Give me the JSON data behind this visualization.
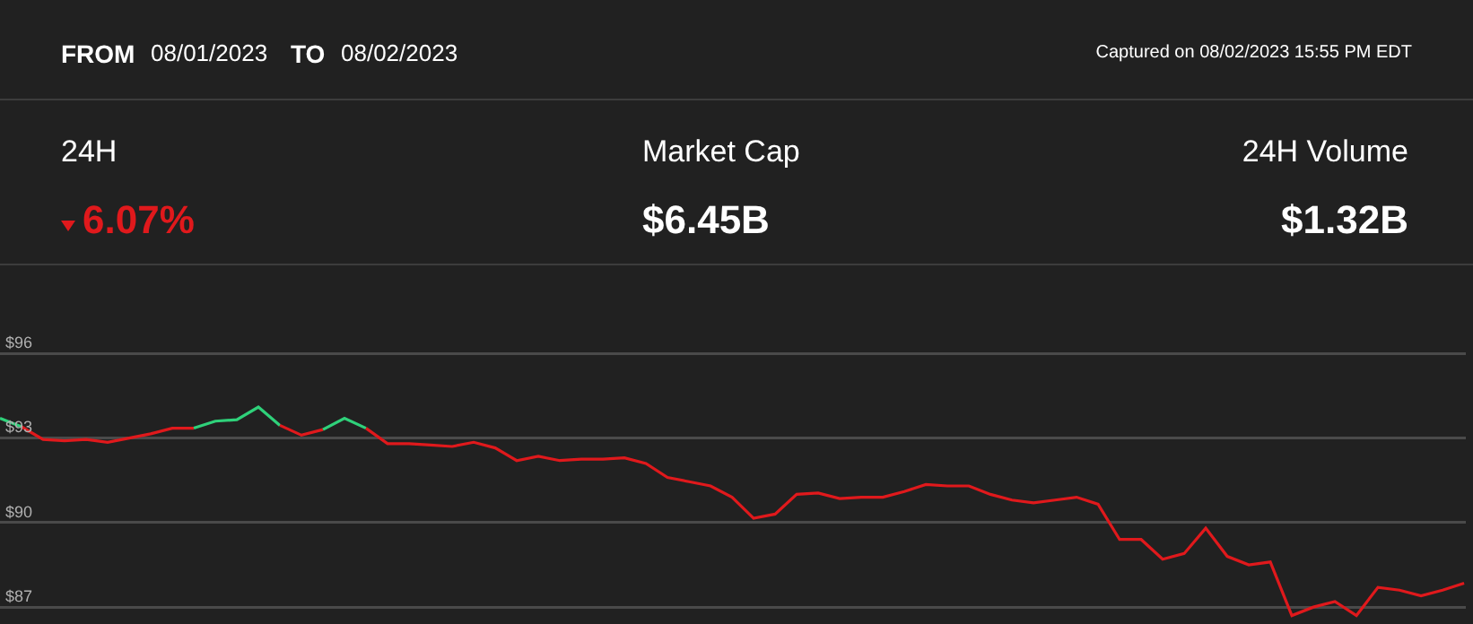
{
  "chart_data": {
    "type": "line",
    "annotations": [
      "FROM",
      "08/01/2023",
      "TO",
      "08/02/2023",
      "Captured on 08/02/2023 15:55 PM EDT",
      "24H",
      "6.07%",
      "Market Cap",
      "$6.45B",
      "24H Volume",
      "$1.32B"
    ],
    "categories": [
      null,
      null,
      null,
      null,
      null,
      null,
      null,
      null,
      null,
      null,
      null,
      null,
      null,
      null,
      null,
      null,
      null,
      null,
      null,
      null,
      null,
      null,
      null,
      null,
      null,
      null,
      null,
      null,
      null,
      null,
      null,
      null,
      null,
      null,
      null,
      null,
      null,
      null,
      null,
      null,
      null,
      null,
      null,
      null,
      null,
      null,
      null,
      null,
      null,
      null,
      null,
      null,
      null,
      null,
      null,
      null,
      null,
      null,
      null,
      null,
      null,
      null,
      null,
      null,
      null,
      null,
      null,
      null,
      null
    ],
    "series": [
      {
        "color": "#2fd17a",
        "values": [
          93.7,
          93.4,
          null,
          null,
          null,
          null,
          null,
          null,
          null,
          null,
          null,
          null,
          null,
          null,
          null,
          null,
          null,
          null,
          null,
          null,
          null,
          null,
          null,
          null,
          null,
          null,
          null,
          null,
          null,
          null,
          null,
          null,
          null,
          null,
          null,
          null,
          null,
          null,
          null,
          null,
          null,
          null,
          null,
          null,
          null,
          null,
          null,
          null,
          null,
          null,
          null,
          null,
          null,
          null,
          null,
          null,
          null,
          null,
          null,
          null,
          null,
          null,
          null,
          null,
          null,
          null,
          null,
          null,
          null
        ]
      },
      {
        "color": "#e0191c",
        "values": [
          null,
          93.4,
          92.95,
          92.9,
          92.95,
          92.85,
          93.0,
          93.15,
          93.35,
          93.35,
          null,
          null,
          null,
          null,
          null,
          null,
          null,
          null,
          null,
          null,
          null,
          null,
          null,
          null,
          null,
          null,
          null,
          null,
          null,
          null,
          null,
          null,
          null,
          null,
          null,
          null,
          null,
          null,
          null,
          null,
          null,
          null,
          null,
          null,
          null,
          null,
          null,
          null,
          null,
          null,
          null,
          null,
          null,
          null,
          null,
          null,
          null,
          null,
          null,
          null,
          null,
          null,
          null,
          null,
          null,
          null,
          null,
          null,
          null
        ]
      },
      {
        "color": "#2fd17a",
        "values": [
          null,
          null,
          null,
          null,
          null,
          null,
          null,
          null,
          null,
          93.35,
          93.6,
          93.65,
          94.1,
          93.45,
          null,
          null,
          null,
          null,
          null,
          null,
          null,
          null,
          null,
          null,
          null,
          null,
          null,
          null,
          null,
          null,
          null,
          null,
          null,
          null,
          null,
          null,
          null,
          null,
          null,
          null,
          null,
          null,
          null,
          null,
          null,
          null,
          null,
          null,
          null,
          null,
          null,
          null,
          null,
          null,
          null,
          null,
          null,
          null,
          null,
          null,
          null,
          null,
          null,
          null,
          null,
          null,
          null,
          null,
          null
        ]
      },
      {
        "color": "#e0191c",
        "values": [
          null,
          null,
          null,
          null,
          null,
          null,
          null,
          null,
          null,
          null,
          null,
          null,
          null,
          93.45,
          93.1,
          93.3,
          null,
          null,
          null,
          null,
          null,
          null,
          null,
          null,
          null,
          null,
          null,
          null,
          null,
          null,
          null,
          null,
          null,
          null,
          null,
          null,
          null,
          null,
          null,
          null,
          null,
          null,
          null,
          null,
          null,
          null,
          null,
          null,
          null,
          null,
          null,
          null,
          null,
          null,
          null,
          null,
          null,
          null,
          null,
          null,
          null,
          null,
          null,
          null,
          null,
          null,
          null,
          null,
          null
        ]
      },
      {
        "color": "#2fd17a",
        "values": [
          null,
          null,
          null,
          null,
          null,
          null,
          null,
          null,
          null,
          null,
          null,
          null,
          null,
          null,
          null,
          93.3,
          93.7,
          93.35,
          null,
          null,
          null,
          null,
          null,
          null,
          null,
          null,
          null,
          null,
          null,
          null,
          null,
          null,
          null,
          null,
          null,
          null,
          null,
          null,
          null,
          null,
          null,
          null,
          null,
          null,
          null,
          null,
          null,
          null,
          null,
          null,
          null,
          null,
          null,
          null,
          null,
          null,
          null,
          null,
          null,
          null,
          null,
          null,
          null,
          null,
          null,
          null,
          null,
          null,
          null
        ]
      },
      {
        "color": "#e0191c",
        "values": [
          null,
          null,
          null,
          null,
          null,
          null,
          null,
          null,
          null,
          null,
          null,
          null,
          null,
          null,
          null,
          null,
          null,
          93.35,
          92.8,
          92.8,
          92.75,
          92.7,
          92.85,
          92.65,
          92.2,
          92.35,
          92.2,
          92.25,
          92.25,
          92.3,
          92.1,
          91.6,
          91.45,
          91.3,
          90.9,
          90.15,
          90.3,
          91.0,
          91.05,
          90.85,
          90.9,
          90.9,
          91.1,
          91.35,
          91.3,
          91.3,
          91.0,
          90.8,
          90.7,
          90.8,
          90.9,
          90.65,
          89.4,
          89.4,
          88.7,
          88.9,
          89.8,
          88.8,
          88.5,
          88.6,
          86.7,
          87.0,
          87.2,
          86.7,
          87.7,
          87.6,
          87.4,
          87.6,
          87.85
        ]
      }
    ],
    "ylim": [
      86.4,
      99
    ],
    "yticks": [
      {
        "value": 96,
        "label": "$96"
      },
      {
        "value": 93,
        "label": "$93"
      },
      {
        "value": 90,
        "label": "$90"
      },
      {
        "value": 87,
        "label": "$87"
      }
    ],
    "grid": "y",
    "tick_labels": "y"
  }
}
